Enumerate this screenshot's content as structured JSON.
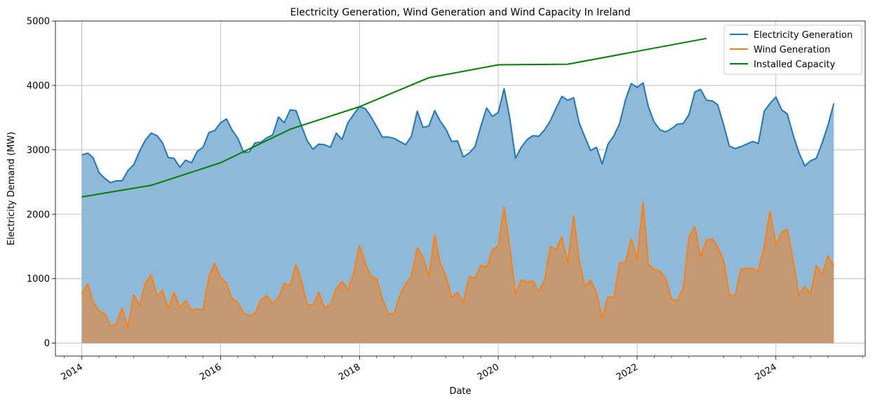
{
  "chart_data": {
    "type": "area",
    "title": "Electricity Generation, Wind Generation and Wind Capacity In Ireland",
    "xlabel": "Date",
    "ylabel": "Electricity Demand (MW)",
    "xlim": [
      "2013-08-15",
      "2025-04-15"
    ],
    "ylim": [
      -200,
      5000
    ],
    "grid": true,
    "legend_position": "top-right",
    "x_ticks": [
      "2014",
      "2016",
      "2018",
      "2020",
      "2022",
      "2024"
    ],
    "y_ticks": [
      0,
      1000,
      2000,
      3000,
      4000,
      5000
    ],
    "monthly_start": "2014-01",
    "series": [
      {
        "name": "Electricity Generation",
        "color": "#1f77b4",
        "fill": "#8fb9d9",
        "values": [
          2920,
          2950,
          2880,
          2650,
          2560,
          2490,
          2520,
          2520,
          2680,
          2770,
          2980,
          3150,
          3260,
          3220,
          3110,
          2880,
          2870,
          2730,
          2840,
          2800,
          2980,
          3040,
          3270,
          3300,
          3420,
          3480,
          3310,
          3180,
          2960,
          2970,
          3110,
          3120,
          3190,
          3230,
          3510,
          3420,
          3620,
          3610,
          3380,
          3140,
          3010,
          3090,
          3080,
          3040,
          3260,
          3160,
          3420,
          3550,
          3670,
          3640,
          3520,
          3360,
          3200,
          3200,
          3180,
          3130,
          3080,
          3210,
          3600,
          3350,
          3370,
          3610,
          3450,
          3320,
          3130,
          3140,
          2890,
          2950,
          3050,
          3360,
          3650,
          3520,
          3580,
          3950,
          3510,
          2870,
          3040,
          3160,
          3220,
          3210,
          3310,
          3450,
          3650,
          3830,
          3770,
          3810,
          3430,
          3200,
          2990,
          3040,
          2780,
          3090,
          3220,
          3410,
          3780,
          4030,
          3970,
          4040,
          3670,
          3430,
          3310,
          3280,
          3330,
          3400,
          3410,
          3550,
          3900,
          3940,
          3770,
          3760,
          3700,
          3390,
          3060,
          3020,
          3050,
          3090,
          3130,
          3100,
          3600,
          3720,
          3820,
          3620,
          3560,
          3230,
          2960,
          2750,
          2830,
          2870,
          3110,
          3380,
          3720
        ]
      },
      {
        "name": "Wind Generation",
        "color": "#ff7f0e",
        "fill": "#c49a74",
        "values": [
          770,
          920,
          640,
          500,
          460,
          270,
          300,
          540,
          250,
          750,
          580,
          930,
          1060,
          730,
          820,
          530,
          790,
          550,
          660,
          510,
          530,
          520,
          1040,
          1240,
          1020,
          930,
          690,
          630,
          470,
          420,
          470,
          670,
          740,
          610,
          700,
          930,
          890,
          1220,
          970,
          600,
          590,
          790,
          550,
          590,
          850,
          960,
          830,
          1080,
          1520,
          1240,
          1040,
          1000,
          690,
          460,
          450,
          740,
          920,
          1030,
          1480,
          1340,
          1040,
          1680,
          1250,
          1040,
          710,
          790,
          630,
          1030,
          1010,
          1210,
          1180,
          1450,
          1510,
          2110,
          1500,
          760,
          980,
          950,
          970,
          800,
          980,
          1500,
          1450,
          1650,
          1240,
          1980,
          1290,
          880,
          980,
          780,
          390,
          720,
          710,
          1240,
          1260,
          1620,
          1310,
          2190,
          1230,
          1140,
          1120,
          1000,
          680,
          660,
          860,
          1650,
          1810,
          1340,
          1600,
          1620,
          1490,
          1290,
          750,
          740,
          1150,
          1160,
          1160,
          1120,
          1510,
          2050,
          1530,
          1720,
          1770,
          1280,
          750,
          880,
          760,
          1210,
          1070,
          1350,
          1200
        ]
      },
      {
        "name": "Installed Capacity",
        "color": "#008000",
        "x": [
          "2014-01",
          "2015-01",
          "2016-01",
          "2017-01",
          "2018-01",
          "2019-01",
          "2020-01",
          "2021-01",
          "2022-01",
          "2023-01"
        ],
        "values": [
          2270,
          2450,
          2800,
          3320,
          3670,
          4120,
          4320,
          4330,
          4530,
          4730
        ]
      }
    ]
  }
}
